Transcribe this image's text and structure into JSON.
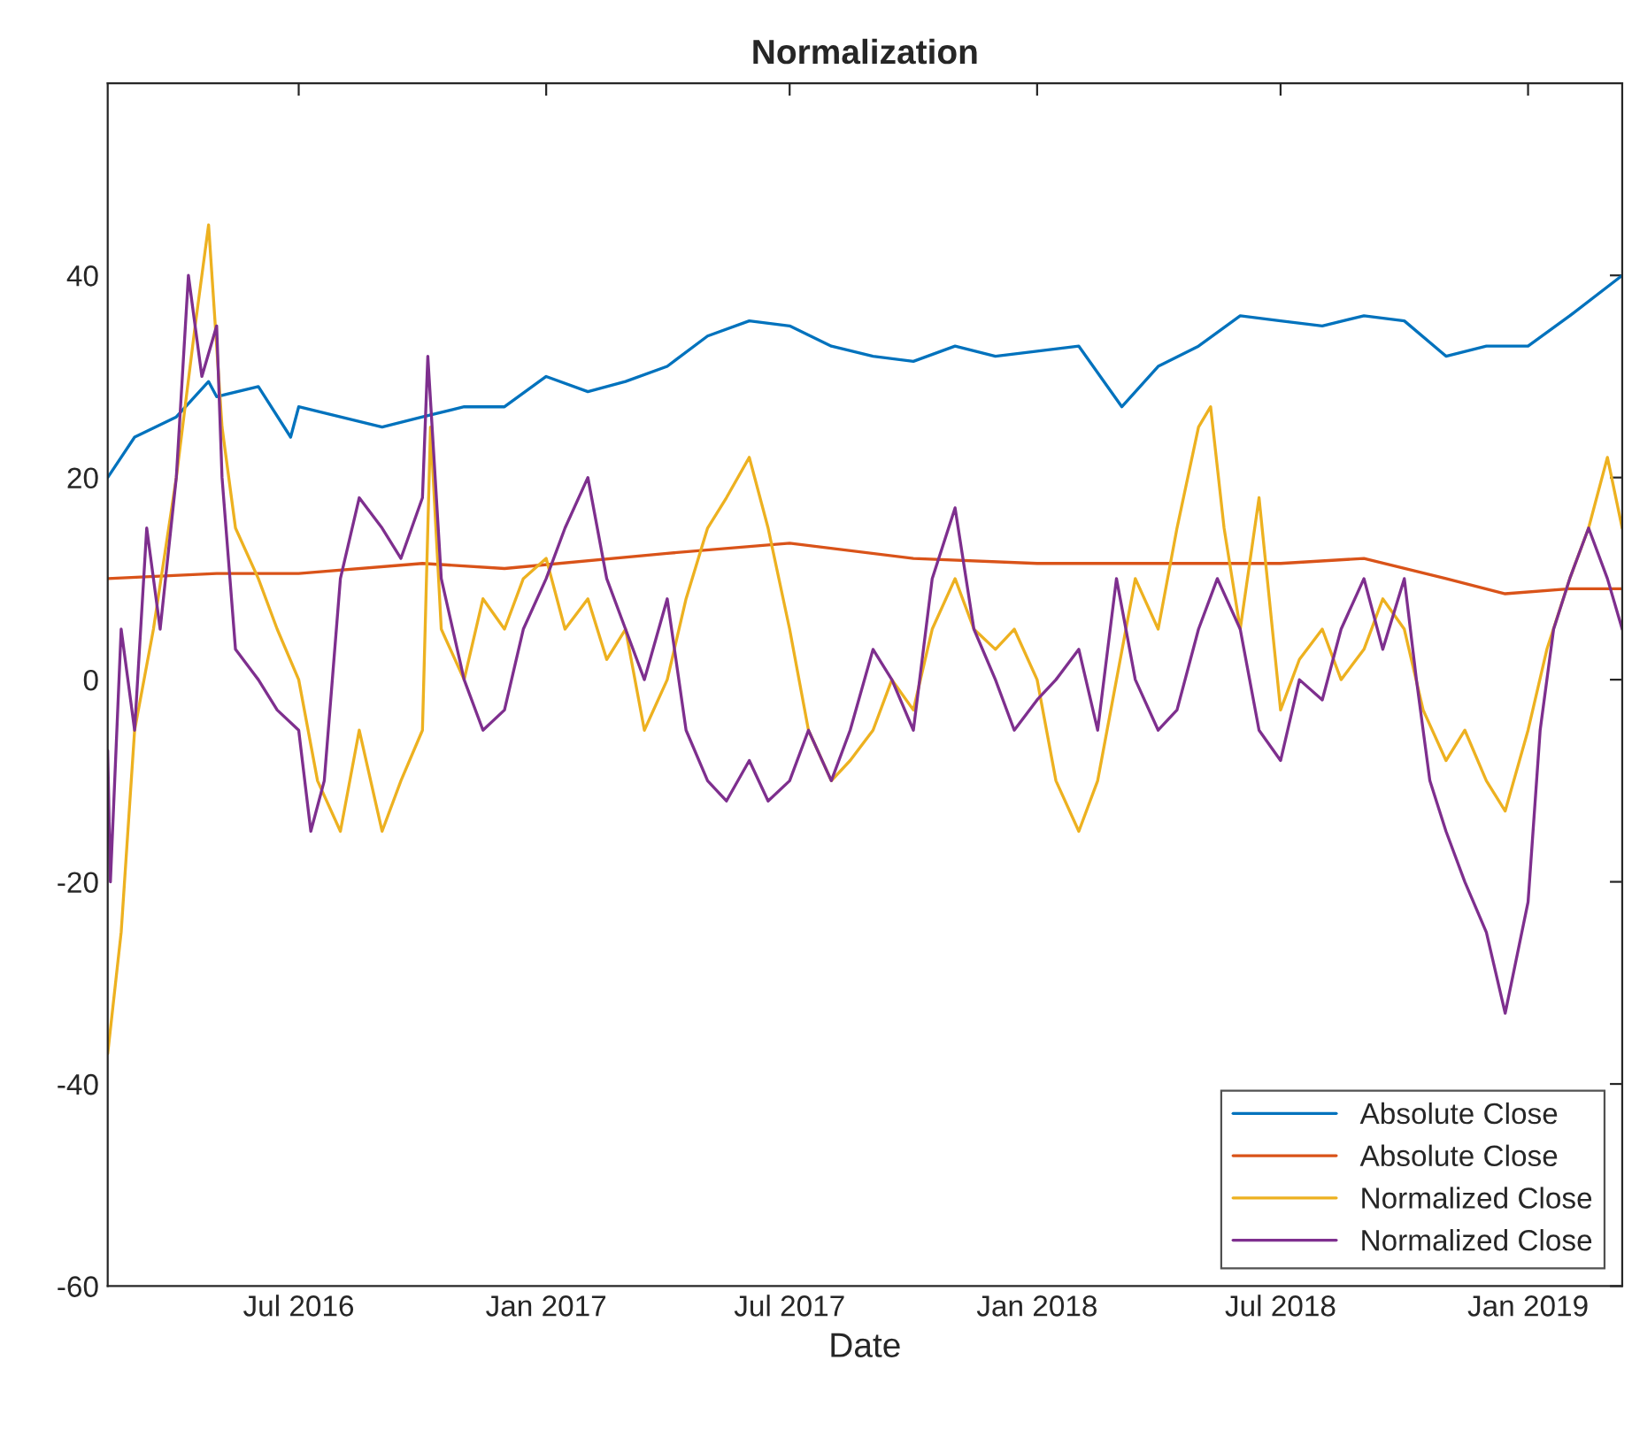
{
  "chart_data": {
    "type": "line",
    "title": "Normalization",
    "xlabel": "Date",
    "xlim": [
      "2016-02-10",
      "2019-03-12"
    ],
    "xticks": [
      {
        "value": "2016-07-01",
        "label": "Jul 2016"
      },
      {
        "value": "2017-01-01",
        "label": "Jan 2017"
      },
      {
        "value": "2017-07-01",
        "label": "Jul 2017"
      },
      {
        "value": "2018-01-01",
        "label": "Jan 2018"
      },
      {
        "value": "2018-07-01",
        "label": "Jul 2018"
      },
      {
        "value": "2019-01-01",
        "label": "Jan 2019"
      }
    ],
    "ylim": [
      -60,
      59
    ],
    "yticks": [
      -60,
      -40,
      -20,
      0,
      20,
      40
    ],
    "legend": "bottom right",
    "grid": false,
    "series": [
      {
        "name": "Absolute Close",
        "color": "#0072bd",
        "x": [
          "2016-02-10",
          "2016-03-01",
          "2016-04-01",
          "2016-04-25",
          "2016-05-01",
          "2016-06-01",
          "2016-06-25",
          "2016-07-01",
          "2016-08-01",
          "2016-09-01",
          "2016-10-01",
          "2016-11-01",
          "2016-12-01",
          "2017-01-01",
          "2017-02-01",
          "2017-03-01",
          "2017-04-01",
          "2017-05-01",
          "2017-06-01",
          "2017-07-01",
          "2017-08-01",
          "2017-09-01",
          "2017-10-01",
          "2017-11-01",
          "2017-12-01",
          "2018-01-01",
          "2018-02-01",
          "2018-03-05",
          "2018-04-01",
          "2018-05-01",
          "2018-06-01",
          "2018-07-01",
          "2018-08-01",
          "2018-09-01",
          "2018-10-01",
          "2018-11-01",
          "2018-12-01",
          "2019-01-01",
          "2019-02-01",
          "2019-03-12"
        ],
        "values": [
          20,
          24,
          26,
          29.5,
          28,
          29,
          24,
          27,
          26,
          25,
          26,
          27,
          27,
          30,
          28.5,
          29.5,
          31,
          34,
          35.5,
          35,
          33,
          32,
          31.5,
          33,
          32,
          32.5,
          33,
          27,
          31,
          33,
          36,
          35.5,
          35,
          36,
          35.5,
          32,
          33,
          33,
          36,
          40
        ]
      },
      {
        "name": "Absolute Close",
        "color": "#d95319",
        "x": [
          "2016-02-10",
          "2016-05-01",
          "2016-07-01",
          "2016-10-01",
          "2016-12-01",
          "2017-04-01",
          "2017-07-01",
          "2017-10-01",
          "2018-01-01",
          "2018-04-01",
          "2018-07-01",
          "2018-09-01",
          "2018-11-01",
          "2018-12-15",
          "2019-02-01",
          "2019-03-12"
        ],
        "values": [
          10,
          10.5,
          10.5,
          11.5,
          11,
          12.5,
          13.5,
          12,
          11.5,
          11.5,
          11.5,
          12,
          10,
          8.5,
          9,
          9
        ]
      },
      {
        "name": "Normalized Close",
        "color": "#edb120",
        "x": [
          "2016-02-10",
          "2016-02-20",
          "2016-03-01",
          "2016-03-15",
          "2016-04-01",
          "2016-04-15",
          "2016-04-25",
          "2016-05-05",
          "2016-05-15",
          "2016-06-01",
          "2016-06-15",
          "2016-07-01",
          "2016-07-15",
          "2016-08-01",
          "2016-08-15",
          "2016-09-01",
          "2016-09-15",
          "2016-10-01",
          "2016-10-07",
          "2016-10-15",
          "2016-11-01",
          "2016-11-15",
          "2016-12-01",
          "2016-12-15",
          "2017-01-01",
          "2017-01-15",
          "2017-02-01",
          "2017-02-15",
          "2017-03-01",
          "2017-03-15",
          "2017-04-01",
          "2017-04-15",
          "2017-05-01",
          "2017-05-15",
          "2017-06-01",
          "2017-06-15",
          "2017-07-01",
          "2017-07-15",
          "2017-08-01",
          "2017-08-15",
          "2017-09-01",
          "2017-09-15",
          "2017-10-01",
          "2017-10-15",
          "2017-11-01",
          "2017-11-15",
          "2017-12-01",
          "2017-12-15",
          "2018-01-01",
          "2018-01-15",
          "2018-02-01",
          "2018-02-15",
          "2018-03-01",
          "2018-03-15",
          "2018-04-01",
          "2018-04-15",
          "2018-05-01",
          "2018-05-10",
          "2018-05-20",
          "2018-06-01",
          "2018-06-15",
          "2018-07-01",
          "2018-07-15",
          "2018-08-01",
          "2018-08-15",
          "2018-09-01",
          "2018-09-15",
          "2018-10-01",
          "2018-10-15",
          "2018-11-01",
          "2018-11-15",
          "2018-12-01",
          "2018-12-15",
          "2019-01-01",
          "2019-01-15",
          "2019-02-01",
          "2019-02-15",
          "2019-03-01",
          "2019-03-12"
        ],
        "values": [
          -37,
          -25,
          -5,
          5,
          20,
          35,
          45,
          25,
          15,
          10,
          5,
          0,
          -10,
          -15,
          -5,
          -15,
          -10,
          -5,
          25,
          5,
          0,
          8,
          5,
          10,
          12,
          5,
          8,
          2,
          5,
          -5,
          0,
          8,
          15,
          18,
          22,
          15,
          5,
          -5,
          -10,
          -8,
          -5,
          0,
          -3,
          5,
          10,
          5,
          3,
          5,
          0,
          -10,
          -15,
          -10,
          0,
          10,
          5,
          15,
          25,
          27,
          15,
          5,
          18,
          -3,
          2,
          5,
          0,
          3,
          8,
          5,
          -3,
          -8,
          -5,
          -10,
          -13,
          -5,
          3,
          10,
          15,
          22,
          15
        ]
      },
      {
        "name": "Normalized Close",
        "color": "#7e2f8e",
        "x": [
          "2016-02-10",
          "2016-02-12",
          "2016-02-20",
          "2016-03-01",
          "2016-03-10",
          "2016-03-20",
          "2016-04-01",
          "2016-04-10",
          "2016-04-20",
          "2016-05-01",
          "2016-05-05",
          "2016-05-15",
          "2016-06-01",
          "2016-06-15",
          "2016-07-01",
          "2016-07-10",
          "2016-07-20",
          "2016-08-01",
          "2016-08-15",
          "2016-09-01",
          "2016-09-15",
          "2016-10-01",
          "2016-10-05",
          "2016-10-15",
          "2016-11-01",
          "2016-11-15",
          "2016-12-01",
          "2016-12-15",
          "2017-01-01",
          "2017-01-15",
          "2017-02-01",
          "2017-02-15",
          "2017-03-01",
          "2017-03-15",
          "2017-04-01",
          "2017-04-15",
          "2017-05-01",
          "2017-05-15",
          "2017-06-01",
          "2017-06-15",
          "2017-07-01",
          "2017-07-15",
          "2017-08-01",
          "2017-08-15",
          "2017-09-01",
          "2017-09-15",
          "2017-10-01",
          "2017-10-15",
          "2017-11-01",
          "2017-11-15",
          "2017-12-01",
          "2017-12-15",
          "2018-01-01",
          "2018-01-15",
          "2018-02-01",
          "2018-02-15",
          "2018-03-01",
          "2018-03-15",
          "2018-04-01",
          "2018-04-15",
          "2018-05-01",
          "2018-05-15",
          "2018-06-01",
          "2018-06-15",
          "2018-07-01",
          "2018-07-15",
          "2018-08-01",
          "2018-08-15",
          "2018-09-01",
          "2018-09-15",
          "2018-10-01",
          "2018-10-10",
          "2018-10-20",
          "2018-11-01",
          "2018-11-15",
          "2018-12-01",
          "2018-12-15",
          "2019-01-01",
          "2019-01-10",
          "2019-01-20",
          "2019-02-01",
          "2019-02-15",
          "2019-03-01",
          "2019-03-12"
        ],
        "values": [
          -7,
          -20,
          5,
          -5,
          15,
          5,
          20,
          40,
          30,
          35,
          20,
          3,
          0,
          -3,
          -5,
          -15,
          -10,
          10,
          18,
          15,
          12,
          18,
          32,
          10,
          0,
          -5,
          -3,
          5,
          10,
          15,
          20,
          10,
          5,
          0,
          8,
          -5,
          -10,
          -12,
          -8,
          -12,
          -10,
          -5,
          -10,
          -5,
          3,
          0,
          -5,
          10,
          17,
          5,
          0,
          -5,
          -2,
          0,
          3,
          -5,
          10,
          0,
          -5,
          -3,
          5,
          10,
          5,
          -5,
          -8,
          0,
          -2,
          5,
          10,
          3,
          10,
          0,
          -10,
          -15,
          -20,
          -25,
          -33,
          -22,
          -5,
          5,
          10,
          15,
          10,
          5
        ]
      }
    ]
  }
}
